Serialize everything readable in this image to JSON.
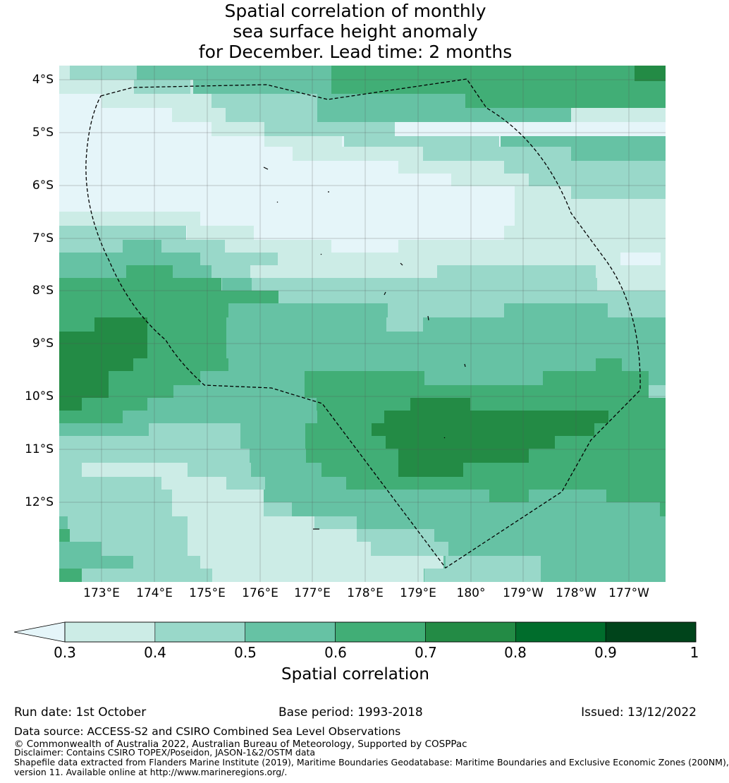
{
  "title_lines": [
    "Spatial correlation of monthly",
    "sea surface height anomaly",
    "for December. Lead time: 2 months"
  ],
  "map": {
    "lat_labels": [
      "4°S",
      "5°S",
      "6°S",
      "7°S",
      "8°S",
      "9°S",
      "10°S",
      "11°S",
      "12°S"
    ],
    "lon_labels": [
      "173°E",
      "174°E",
      "175°E",
      "176°E",
      "177°E",
      "178°E",
      "179°E",
      "180°",
      "179°W",
      "178°W",
      "177°W"
    ],
    "class_colors": [
      "#e5f5f9",
      "#ccece6",
      "#99d8c9",
      "#66c2a4",
      "#41ae76",
      "#238b45",
      "#006d2c",
      "#00441b"
    ],
    "boundary_color": "#000000"
  },
  "colorbar": {
    "ticks": [
      "0.3",
      "0.4",
      "0.5",
      "0.6",
      "0.7",
      "0.8",
      "0.9",
      "1"
    ],
    "label": "Spatial correlation",
    "colors": [
      "#ccece6",
      "#99d8c9",
      "#66c2a4",
      "#41ae76",
      "#238b45",
      "#006d2c",
      "#00441b"
    ],
    "under_color": "#e5f5f9"
  },
  "footer": {
    "run_date": "Run date: 1st October",
    "base_period": "Base period: 1993-2018",
    "issued": "Issued: 13/12/2022",
    "data_source": "Data source: ACCESS-S2 and CSIRO Combined Sea Level Observations",
    "copyright": "© Commonwealth of Australia 2022, Australian Bureau of Meteorology, Supported by COSPPac",
    "disclaimer": "Disclaimer: Contains CSIRO TOPEX/Poseidon, JASON-1&2/OSTM data",
    "shapefile": "Shapefile data extracted from Flanders Marine Institute (2019), Maritime Boundaries Geodatabase: Maritime Boundaries and Exclusive Economic Zones (200NM),",
    "version": "version 11. Available online at http://www.marineregions.org/."
  }
}
